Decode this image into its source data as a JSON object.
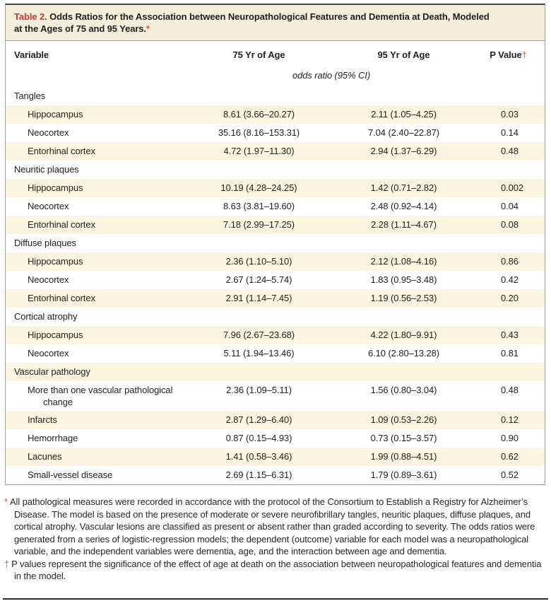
{
  "table": {
    "label": "Table 2.",
    "title": "Odds Ratios for the Association between Neuropathological Features and Dementia at Death, Modeled at the Ages of 75 and 95 Years.",
    "title_marker": "*",
    "columns": {
      "variable": "Variable",
      "age75": "75 Yr of Age",
      "age95": "95 Yr of Age",
      "pvalue": "P Value",
      "pvalue_marker": "†"
    },
    "unit_row": "odds ratio (95% CI)",
    "rows": [
      {
        "label": "Tangles",
        "indent": 0,
        "or75": "",
        "or95": "",
        "p": ""
      },
      {
        "label": "Hippocampus",
        "indent": 1,
        "or75": "8.61 (3.66–20.27)",
        "or95": "2.11 (1.05–4.25)",
        "p": "0.03"
      },
      {
        "label": "Neocortex",
        "indent": 1,
        "or75": "35.16 (8.16–153.31)",
        "or95": "7.04 (2.40–22.87)",
        "p": "0.14"
      },
      {
        "label": "Entorhinal cortex",
        "indent": 1,
        "or75": "4.72 (1.97–11.30)",
        "or95": "2.94 (1.37–6.29)",
        "p": "0.48"
      },
      {
        "label": "Neuritic plaques",
        "indent": 0,
        "or75": "",
        "or95": "",
        "p": ""
      },
      {
        "label": "Hippocampus",
        "indent": 1,
        "or75": "10.19 (4.28–24.25)",
        "or95": "1.42 (0.71–2.82)",
        "p": "0.002"
      },
      {
        "label": "Neocortex",
        "indent": 1,
        "or75": "8.63 (3.81–19.60)",
        "or95": "2.48 (0.92–4.14)",
        "p": "0.04"
      },
      {
        "label": "Entorhinal cortex",
        "indent": 1,
        "or75": "7.18 (2.99–17.25)",
        "or95": "2.28 (1.11–4.67)",
        "p": "0.08"
      },
      {
        "label": "Diffuse plaques",
        "indent": 0,
        "or75": "",
        "or95": "",
        "p": ""
      },
      {
        "label": "Hippocampus",
        "indent": 1,
        "or75": "2.36 (1.10–5.10)",
        "or95": "2.12 (1.08–4.16)",
        "p": "0.86"
      },
      {
        "label": "Neocortex",
        "indent": 1,
        "or75": "2.67 (1.24–5.74)",
        "or95": "1.83 (0.95–3.48)",
        "p": "0.42"
      },
      {
        "label": "Entorhinal cortex",
        "indent": 1,
        "or75": "2.91 (1.14–7.45)",
        "or95": "1.19 (0.56–2.53)",
        "p": "0.20"
      },
      {
        "label": "Cortical atrophy",
        "indent": 0,
        "or75": "",
        "or95": "",
        "p": ""
      },
      {
        "label": "Hippocampus",
        "indent": 1,
        "or75": "7.96 (2.67–23.68)",
        "or95": "4.22 (1.80–9.91)",
        "p": "0.43"
      },
      {
        "label": "Neocortex",
        "indent": 1,
        "or75": "5.11 (1.94–13.46)",
        "or95": "6.10 (2.80–13.28)",
        "p": "0.81"
      },
      {
        "label": "Vascular pathology",
        "indent": 0,
        "or75": "",
        "or95": "",
        "p": ""
      },
      {
        "label": "More than one vascular pathological change",
        "indent": 1,
        "or75": "2.36 (1.09–5.11)",
        "or95": "1.56 (0.80–3.04)",
        "p": "0.48"
      },
      {
        "label": "Infarcts",
        "indent": 1,
        "or75": "2.87 (1.29–6.40)",
        "or95": "1.09 (0.53–2.26)",
        "p": "0.12"
      },
      {
        "label": "Hemorrhage",
        "indent": 1,
        "or75": "0.87 (0.15–4.93)",
        "or95": "0.73 (0.15–3.57)",
        "p": "0.90"
      },
      {
        "label": "Lacunes",
        "indent": 1,
        "or75": "1.41 (0.58–3.46)",
        "or95": "1.99 (0.88–4.51)",
        "p": "0.62"
      },
      {
        "label": "Small-vessel disease",
        "indent": 1,
        "or75": "2.69 (1.15–6.31)",
        "or95": "1.79 (0.89–3.61)",
        "p": "0.52"
      }
    ]
  },
  "footnotes": [
    {
      "marker": "*",
      "text": "All pathological measures were recorded in accordance with the protocol of the Consortium to Establish a Registry for Alzheimer’s Disease. The model is based on the presence of moderate or severe neurofibrillary tangles, neuritic plaques, diffuse plaques, and cortical atrophy. Vascular lesions are classified as present or absent rather than graded according to severity. The odds ratios were generated from a series of logistic-regression models; the dependent (outcome) variable for each model was a neuropathological variable, and the independent variables were dementia, age, and the interaction between age and dementia."
    },
    {
      "marker": "†",
      "text": "P values represent the significance of the effect of age at death on the association between neuropathological features and dementia in the model."
    }
  ],
  "colors": {
    "table_number_red": "#c23a32",
    "footnote_marker_orange": "#c95b30",
    "row_shade_cream": "#fcf4e1",
    "title_background_cream": "#f6eedb",
    "frame_border_gray": "#9b9da0",
    "text_dark": "#26211e"
  }
}
